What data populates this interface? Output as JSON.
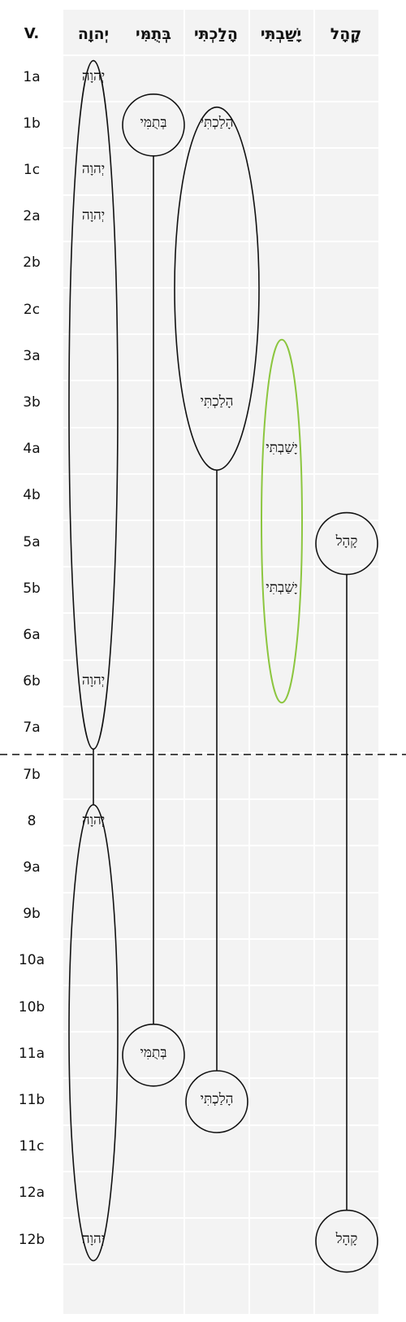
{
  "header": {
    "verse_label": "V.",
    "columns": [
      "יְהוָה",
      "בְּתֻמִּי",
      "הָלַכְתִּי",
      "יָשַׁבְתִּי",
      "קָהָל"
    ]
  },
  "verses": [
    "1a",
    "1b",
    "1c",
    "2a",
    "2b",
    "2c",
    "3a",
    "3b",
    "4a",
    "4b",
    "5a",
    "5b",
    "6a",
    "6b",
    "7a",
    "7b",
    "8",
    "9a",
    "9b",
    "10a",
    "10b",
    "11a",
    "11b",
    "11c",
    "12a",
    "12b"
  ],
  "section_break_after": "7a",
  "occurrences": [
    {
      "column": 0,
      "verse": "1a",
      "text": "יְהוָה"
    },
    {
      "column": 0,
      "verse": "1c",
      "text": "יְהוָה"
    },
    {
      "column": 0,
      "verse": "2a",
      "text": "יְהוָה"
    },
    {
      "column": 0,
      "verse": "6b",
      "text": "יְהוָה"
    },
    {
      "column": 0,
      "verse": "8",
      "text": "יְהוָה"
    },
    {
      "column": 0,
      "verse": "12b",
      "text": "יְהוָה"
    },
    {
      "column": 1,
      "verse": "1b",
      "text": "בְּתֻמִּי"
    },
    {
      "column": 1,
      "verse": "11a",
      "text": "בְּתֻמִּי"
    },
    {
      "column": 2,
      "verse": "1b",
      "text": "הָלַכְתִּי"
    },
    {
      "column": 2,
      "verse": "3b",
      "text": "הָלַכְתִּי"
    },
    {
      "column": 2,
      "verse": "11b",
      "text": "הָלַכְתִּי"
    },
    {
      "column": 3,
      "verse": "4a",
      "text": "יָשַׁבְתִּי"
    },
    {
      "column": 3,
      "verse": "5b",
      "text": "יָשַׁבְתִּי"
    },
    {
      "column": 4,
      "verse": "5a",
      "text": "קָהָל"
    },
    {
      "column": 4,
      "verse": "12b",
      "text": "קָהָל"
    }
  ],
  "groups": [
    {
      "column": 0,
      "from": "1a",
      "to": "7a",
      "shape": "ellipse"
    },
    {
      "column": 0,
      "from": "8",
      "to": "12b",
      "shape": "ellipse"
    },
    {
      "column": 1,
      "from": "1b",
      "to": "1b",
      "shape": "circle"
    },
    {
      "column": 1,
      "from": "11a",
      "to": "11a",
      "shape": "circle"
    },
    {
      "column": 2,
      "from": "1b",
      "to": "4a",
      "shape": "ellipse"
    },
    {
      "column": 2,
      "from": "11b",
      "to": "11b",
      "shape": "circle"
    },
    {
      "column": 3,
      "from": "3a",
      "to": "6b",
      "shape": "ellipse",
      "color": "#8cc63f"
    },
    {
      "column": 4,
      "from": "5a",
      "to": "5a",
      "shape": "circle"
    },
    {
      "column": 4,
      "from": "12b",
      "to": "12b",
      "shape": "circle"
    }
  ],
  "connectors": [
    {
      "column": 0,
      "from_group": 0,
      "to_group": 1
    },
    {
      "column": 1,
      "from_group": 2,
      "to_group": 3
    },
    {
      "column": 2,
      "from_group": 4,
      "to_group": 5
    },
    {
      "column": 4,
      "from_group": 7,
      "to_group": 8
    }
  ],
  "colors": {
    "band": "#f3f3f3",
    "line": "#111111",
    "highlight": "#8cc63f"
  }
}
